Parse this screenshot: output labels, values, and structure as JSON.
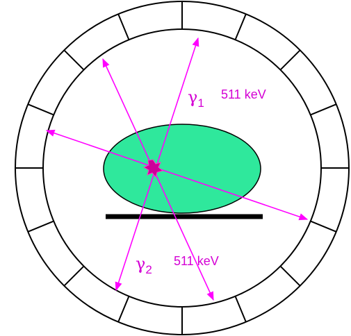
{
  "labels": [
    {
      "symbol": "γ",
      "subscript": "1",
      "energy": "511 keV"
    },
    {
      "symbol": "γ",
      "subscript": "2",
      "energy": "511 keV"
    }
  ]
}
